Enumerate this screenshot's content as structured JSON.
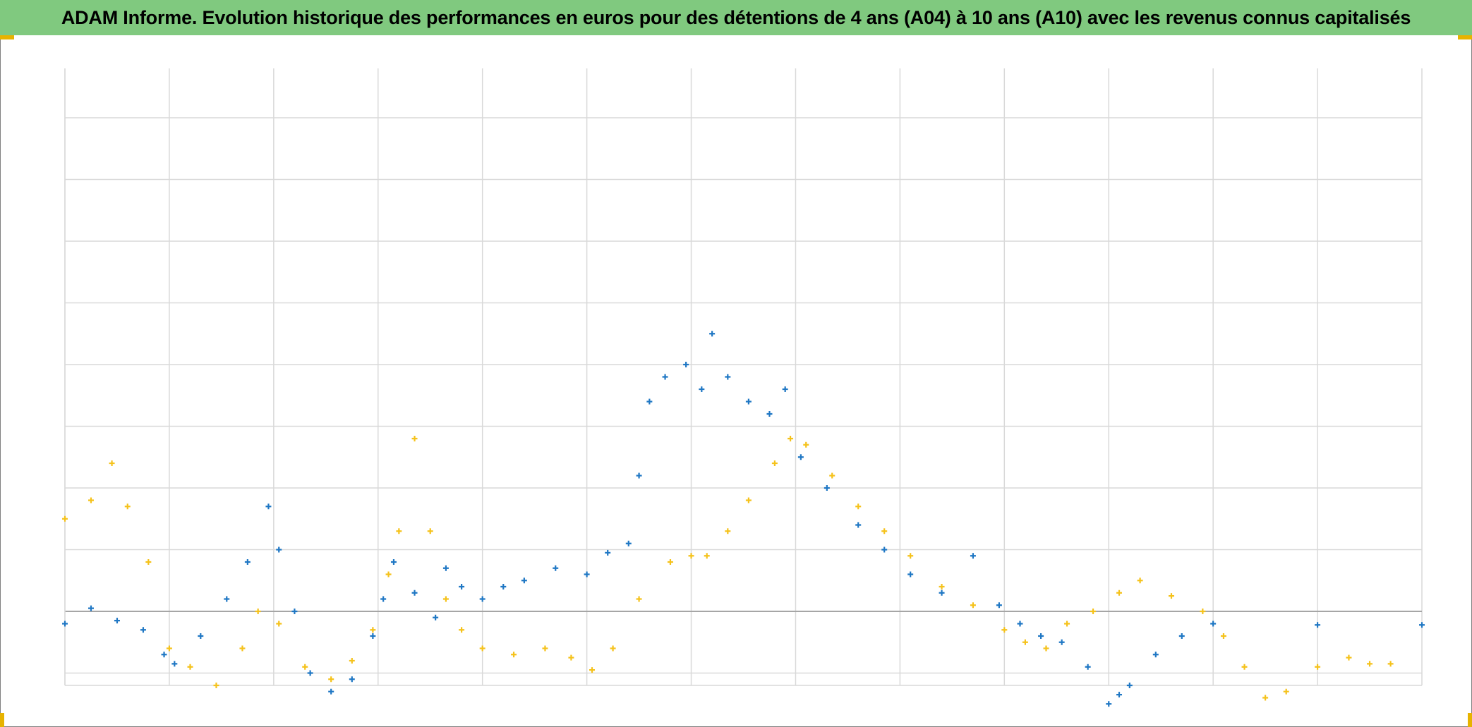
{
  "header": {
    "title": "ADAM Informe. Evolution historique des performances en euros pour des détentions de 4 ans (A04) à 10 ans (A10) avec les revenus connus capitalisés"
  },
  "colors": {
    "title_background": "#80c97f",
    "series_a": "#1f77c4",
    "series_b": "#f5c21b",
    "grid": "#d9d9d9",
    "zero_line": "#a6a6a6",
    "frame_corner": "#e7b300"
  },
  "chart_data": {
    "type": "scatter",
    "marker": "plus",
    "title": "ADAM Informe. Evolution historique des performances en euros pour des détentions de 4 ans (A04) à 10 ans (A10) avec les revenus connus capitalisés",
    "xlabel": "",
    "ylabel": "",
    "xlim": [
      0,
      13
    ],
    "ylim": [
      -1.2,
      8.8
    ],
    "grid": true,
    "zero_line": 0,
    "legend": "none",
    "series": [
      {
        "color": "#1f77c4",
        "x": [
          0.0,
          0.25,
          0.5,
          0.75,
          0.95,
          1.05,
          1.3,
          1.55,
          1.75,
          1.95,
          2.05,
          2.2,
          2.35,
          2.55,
          2.75,
          2.95,
          3.05,
          3.15,
          3.35,
          3.55,
          3.65,
          3.8,
          4.0,
          4.2,
          4.4,
          4.7,
          5.0,
          5.2,
          5.4,
          5.5,
          5.6,
          5.75,
          5.95,
          6.1,
          6.2,
          6.35,
          6.55,
          6.75,
          6.9,
          7.05,
          7.3,
          7.6,
          7.85,
          8.1,
          8.4,
          8.7,
          8.95,
          9.15,
          9.35,
          9.55,
          9.8,
          10.0,
          10.1,
          10.2,
          10.45,
          10.7,
          11.0,
          12.0,
          13.0
        ],
        "y": [
          -0.2,
          0.05,
          -0.15,
          -0.3,
          -0.7,
          -0.85,
          -0.4,
          0.2,
          0.8,
          1.7,
          1.0,
          0.0,
          -1.0,
          -1.3,
          -1.1,
          -0.4,
          0.2,
          0.8,
          0.3,
          -0.1,
          0.7,
          0.4,
          0.2,
          0.4,
          0.5,
          0.7,
          0.6,
          0.95,
          1.1,
          2.2,
          3.4,
          3.8,
          4.0,
          3.6,
          4.5,
          3.8,
          3.4,
          3.2,
          3.6,
          2.5,
          2.0,
          1.4,
          1.0,
          0.6,
          0.3,
          0.9,
          0.1,
          -0.2,
          -0.4,
          -0.5,
          -0.9,
          -1.5,
          -1.35,
          -1.2,
          -0.7,
          -0.4,
          -0.2,
          -0.22,
          -0.22
        ]
      },
      {
        "color": "#f5c21b",
        "x": [
          0.0,
          0.25,
          0.45,
          0.6,
          0.8,
          1.0,
          1.2,
          1.45,
          1.7,
          1.85,
          2.05,
          2.3,
          2.55,
          2.75,
          2.95,
          3.1,
          3.2,
          3.35,
          3.5,
          3.65,
          3.8,
          4.0,
          4.3,
          4.6,
          4.85,
          5.05,
          5.25,
          5.5,
          5.8,
          6.0,
          6.15,
          6.35,
          6.55,
          6.8,
          6.95,
          7.1,
          7.35,
          7.6,
          7.85,
          8.1,
          8.4,
          8.7,
          9.0,
          9.2,
          9.4,
          9.6,
          9.85,
          10.1,
          10.3,
          10.6,
          10.9,
          11.1,
          11.3,
          11.5,
          11.7,
          12.0,
          12.3,
          12.5,
          12.7
        ],
        "y": [
          1.5,
          1.8,
          2.4,
          1.7,
          0.8,
          -0.6,
          -0.9,
          -1.2,
          -0.6,
          0.0,
          -0.2,
          -0.9,
          -1.1,
          -0.8,
          -0.3,
          0.6,
          1.3,
          2.8,
          1.3,
          0.2,
          -0.3,
          -0.6,
          -0.7,
          -0.6,
          -0.75,
          -0.95,
          -0.6,
          0.2,
          0.8,
          0.9,
          0.9,
          1.3,
          1.8,
          2.4,
          2.8,
          2.7,
          2.2,
          1.7,
          1.3,
          0.9,
          0.4,
          0.1,
          -0.3,
          -0.5,
          -0.6,
          -0.2,
          0.0,
          0.3,
          0.5,
          0.25,
          0.0,
          -0.4,
          -0.9,
          -1.4,
          -1.3,
          -0.9,
          -0.75,
          -0.85,
          -0.85
        ]
      }
    ]
  }
}
